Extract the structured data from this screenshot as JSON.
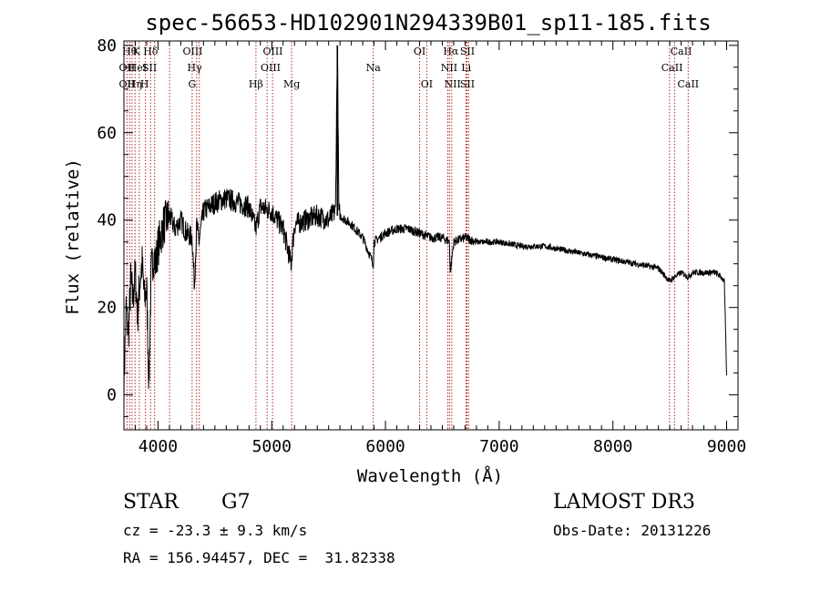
{
  "chart_data": {
    "type": "line",
    "title": "spec-56653-HD102901N294339B01_sp11-185.fits",
    "xlabel": "Wavelength (Å)",
    "ylabel": "Flux (relative)",
    "xlim": [
      3700,
      9100
    ],
    "ylim": [
      -8,
      81
    ],
    "xticks": [
      4000,
      5000,
      6000,
      7000,
      8000,
      9000
    ],
    "yticks": [
      0,
      20,
      40,
      60,
      80
    ],
    "grid": false,
    "series": [
      {
        "name": "spectrum",
        "x": [
          3700,
          3720,
          3740,
          3760,
          3780,
          3800,
          3820,
          3840,
          3860,
          3880,
          3900,
          3920,
          3940,
          3960,
          3980,
          4000,
          4050,
          4100,
          4150,
          4200,
          4250,
          4300,
          4320,
          4340,
          4360,
          4400,
          4500,
          4600,
          4700,
          4800,
          4860,
          4900,
          5000,
          5100,
          5170,
          5200,
          5300,
          5400,
          5500,
          5560,
          5577,
          5590,
          5600,
          5700,
          5800,
          5893,
          5900,
          6000,
          6100,
          6200,
          6300,
          6400,
          6500,
          6563,
          6570,
          6600,
          6700,
          6800,
          6900,
          7000,
          7200,
          7400,
          7600,
          7800,
          8000,
          8200,
          8400,
          8498,
          8542,
          8600,
          8662,
          8700,
          8800,
          8900,
          8950,
          8980,
          9000
        ],
        "values": [
          2,
          20,
          14,
          26,
          22,
          28,
          18,
          26,
          30,
          22,
          24,
          3,
          28,
          32,
          30,
          34,
          39,
          41,
          38,
          40,
          37,
          36,
          25,
          39,
          35,
          42,
          44,
          45,
          44,
          43,
          38,
          43,
          42,
          38,
          30,
          39,
          40,
          41,
          40,
          42,
          80,
          42,
          41,
          39,
          36,
          30,
          35,
          37,
          38,
          38,
          37,
          36,
          36,
          35,
          28,
          35,
          36,
          35,
          35,
          35,
          34,
          34,
          33,
          32,
          31,
          30,
          29,
          26,
          27,
          28,
          27,
          28,
          28,
          28,
          27,
          26,
          4
        ]
      }
    ],
    "lines_top": [
      {
        "w": 3750,
        "label": "Hθ"
      },
      {
        "w": 3810,
        "label": "K"
      },
      {
        "w": 3935,
        "label": "Hδ"
      },
      {
        "w": 4305,
        "label": "OIII"
      },
      {
        "w": 5010,
        "label": "OIII"
      },
      {
        "w": 6300,
        "label": "OI"
      },
      {
        "w": 6575,
        "label": "Hα"
      },
      {
        "w": 6720,
        "label": "SII"
      },
      {
        "w": 8600,
        "label": "CaII"
      }
    ],
    "lines_mid": [
      {
        "w": 3727,
        "label": "OII"
      },
      {
        "w": 3820,
        "label": "HeI"
      },
      {
        "w": 3925,
        "label": "SII"
      },
      {
        "w": 4322,
        "label": "Hγ"
      },
      {
        "w": 4990,
        "label": "OIII"
      },
      {
        "w": 5893,
        "label": "Na"
      },
      {
        "w": 6560,
        "label": "NII"
      },
      {
        "w": 6710,
        "label": "Li"
      },
      {
        "w": 8520,
        "label": "CaII"
      }
    ],
    "lines_low": [
      {
        "w": 3727,
        "label": "OII"
      },
      {
        "w": 3795,
        "label": "Hη"
      },
      {
        "w": 3882,
        "label": "H"
      },
      {
        "w": 4300,
        "label": "G"
      },
      {
        "w": 4861,
        "label": "Hβ"
      },
      {
        "w": 5175,
        "label": "Mg"
      },
      {
        "w": 6363,
        "label": "OI"
      },
      {
        "w": 6590,
        "label": "NII"
      },
      {
        "w": 6720,
        "label": "SII"
      },
      {
        "w": 8662,
        "label": "CaII"
      }
    ],
    "marker_lines": [
      3727,
      3750,
      3771,
      3798,
      3835,
      3889,
      3934,
      3970,
      4102,
      4300,
      4340,
      4363,
      4861,
      4959,
      5007,
      5175,
      5893,
      6300,
      6363,
      6548,
      6563,
      6583,
      6708,
      6717,
      6731,
      8498,
      8542,
      8662
    ]
  },
  "info": {
    "class_label": "STAR",
    "subclass": "G7",
    "survey": "LAMOST DR3",
    "redshift": "cz = -23.3 ± 9.3 km/s",
    "obs_date": "Obs-Date: 20131226",
    "coords": "RA = 156.94457, DEC =  31.82338"
  },
  "colors": {
    "axes": "#000000",
    "spectrum": "#000000",
    "marker": "#b22222"
  }
}
